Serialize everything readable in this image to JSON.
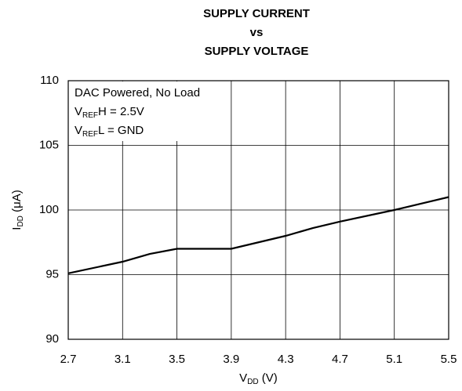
{
  "chart_data": {
    "type": "line",
    "title": [
      "SUPPLY CURRENT",
      "vs",
      "SUPPLY VOLTAGE"
    ],
    "x_label": [
      "V",
      "DD",
      " (V)"
    ],
    "y_label": [
      "I",
      "DD",
      " (μA)"
    ],
    "annotation": [
      [
        "DAC Powered, No Load"
      ],
      [
        "V",
        "REF",
        "H = 2.5V"
      ],
      [
        "V",
        "REF",
        "L = GND"
      ]
    ],
    "x": [
      2.7,
      3.1,
      3.3,
      3.5,
      3.9,
      4.3,
      4.5,
      4.7,
      5.1,
      5.5
    ],
    "series": [
      {
        "color": "#000000",
        "values": [
          95.1,
          96.0,
          96.6,
          97.0,
          97.0,
          98.0,
          98.6,
          99.1,
          100.0,
          101.0
        ]
      }
    ],
    "xlim": [
      2.7,
      5.5
    ],
    "xticks": [
      2.7,
      3.1,
      3.5,
      3.9,
      4.3,
      4.7,
      5.1,
      5.5
    ],
    "ylim": [
      90,
      110
    ],
    "yticks": [
      90,
      95,
      100,
      105,
      110
    ],
    "grid": true
  }
}
